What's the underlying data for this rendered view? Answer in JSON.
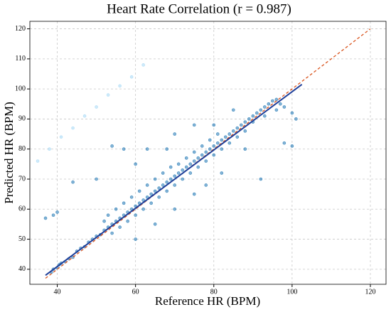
{
  "chart_data": {
    "type": "scatter",
    "title": "Heart Rate Correlation (r = 0.987)",
    "x_label": "Reference HR (BPM)",
    "y_label": "Predicted HR (BPM)",
    "xlim": [
      33,
      124
    ],
    "ylim": [
      35,
      122.5
    ],
    "xticks": [
      40,
      60,
      80,
      100,
      120
    ],
    "yticks": [
      40,
      50,
      60,
      70,
      80,
      90,
      100,
      110,
      120
    ],
    "grid": true,
    "series": [
      {
        "type": "scatter",
        "color": "#1f77b4",
        "x": [
          38.5,
          39,
          40,
          40.5,
          41,
          42,
          43,
          44,
          45,
          46,
          47,
          48,
          49,
          50,
          51,
          52,
          52,
          53,
          53,
          54,
          54,
          55,
          55,
          56,
          56,
          57,
          57,
          58,
          58,
          59,
          59,
          60,
          60,
          61,
          61,
          62,
          62,
          63,
          63,
          64,
          64,
          65,
          65,
          66,
          66,
          67,
          67,
          68,
          68,
          69,
          69,
          70,
          70,
          71,
          71,
          72,
          72,
          73,
          73,
          74,
          74,
          75,
          75,
          76,
          76,
          77,
          77,
          78,
          78,
          79,
          79,
          80,
          80,
          81,
          81,
          82,
          82,
          83,
          84,
          84,
          85,
          86,
          86,
          87,
          88,
          88,
          89,
          90,
          90,
          91,
          92,
          93,
          93,
          94,
          95,
          96,
          97,
          98,
          100,
          101,
          100,
          98,
          54,
          57,
          60,
          63,
          50,
          44,
          40,
          39,
          37,
          68,
          70,
          75,
          80,
          85,
          60,
          65,
          70,
          75,
          78,
          82,
          88,
          92,
          96
        ],
        "values": [
          39,
          40,
          40.5,
          41.5,
          42,
          42.5,
          43.5,
          44,
          46,
          47,
          47.5,
          49,
          50,
          51,
          51.5,
          53,
          56,
          54,
          58,
          55,
          52,
          56,
          60,
          57,
          54,
          58,
          62,
          59,
          56,
          60,
          64,
          61,
          58,
          62,
          66,
          63,
          60,
          64,
          68,
          65,
          62,
          66,
          70,
          67,
          64,
          68,
          72,
          69,
          66,
          70,
          74,
          71,
          68,
          72,
          75,
          73,
          70,
          74,
          77,
          75,
          72,
          76,
          79,
          77,
          74,
          78,
          81,
          79,
          76,
          80,
          83,
          81,
          78,
          82,
          85,
          83,
          80,
          84,
          85,
          82,
          86,
          87,
          84,
          88,
          89,
          86,
          90,
          91,
          89,
          92,
          93,
          94,
          91,
          95,
          96,
          96.5,
          95,
          94,
          92,
          90,
          81,
          82,
          81,
          80,
          75,
          80,
          70,
          69,
          59,
          58,
          57,
          80,
          85,
          88,
          88,
          93,
          50,
          55,
          60,
          65,
          68,
          72,
          80,
          70,
          93
        ]
      },
      {
        "type": "scatter",
        "color": "#a6d8f5",
        "x": [
          35,
          38,
          41,
          44,
          47,
          50,
          53,
          56,
          59,
          62
        ],
        "values": [
          76,
          80,
          84,
          87,
          91,
          94,
          98,
          101,
          104,
          108
        ]
      },
      {
        "type": "line",
        "color": "#d9541e",
        "dashed": true,
        "x": [
          37,
          120
        ],
        "values": [
          37,
          120
        ]
      },
      {
        "type": "line",
        "color": "#1f3f99",
        "x": [
          37,
          102.5
        ],
        "values": [
          38,
          101.5
        ]
      }
    ]
  }
}
